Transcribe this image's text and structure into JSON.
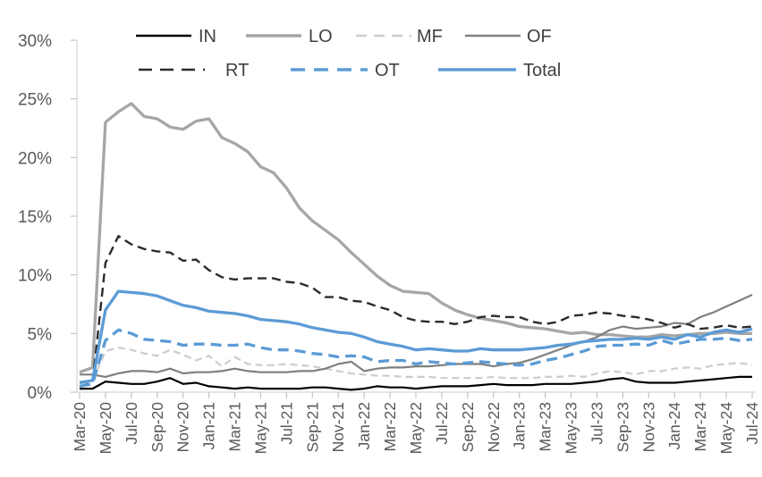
{
  "chart_data": {
    "type": "line",
    "title": "",
    "xlabel": "",
    "ylabel": "",
    "y_unit": "%",
    "ylim": [
      0,
      30
    ],
    "grid": false,
    "legend_position": "top",
    "legend_rows": [
      [
        "IN",
        "LO",
        "MF",
        "OF"
      ],
      [
        "RT",
        "OT",
        "Total"
      ]
    ],
    "y_tick_labels": [
      "0%",
      "5%",
      "10%",
      "15%",
      "20%",
      "25%",
      "30%"
    ],
    "x_tick_labels": [
      "Mar-20",
      "May-20",
      "Jul-20",
      "Sep-20",
      "Nov-20",
      "Jan-21",
      "Mar-21",
      "May-21",
      "Jul-21",
      "Sep-21",
      "Nov-21",
      "Jan-22",
      "Mar-22",
      "May-22",
      "Jul-22",
      "Sep-22",
      "Nov-22",
      "Jan-23",
      "Mar-23",
      "May-23",
      "Jul-23",
      "Sep-23",
      "Nov-23",
      "Jan-24",
      "Mar-24",
      "May-24",
      "Jul-24"
    ],
    "label_every": 2,
    "n_points": 53,
    "x_range_note": "monthly points from Mar-20 to Jul-24",
    "colors": {
      "axis": "#d6d6d6",
      "tick": "#c4c4c4",
      "tick_label": "#595959",
      "legend_text": "#404040",
      "blue": "#5b9bd5"
    },
    "series": [
      {
        "name": "IN",
        "color": "#000000",
        "dash": "solid",
        "values": [
          0.3,
          0.3,
          0.9,
          0.8,
          0.7,
          0.7,
          0.9,
          1.2,
          0.7,
          0.8,
          0.5,
          0.4,
          0.3,
          0.4,
          0.3,
          0.3,
          0.3,
          0.3,
          0.4,
          0.4,
          0.3,
          0.2,
          0.3,
          0.5,
          0.4,
          0.4,
          0.3,
          0.4,
          0.5,
          0.5,
          0.5,
          0.6,
          0.7,
          0.6,
          0.6,
          0.6,
          0.7,
          0.7,
          0.7,
          0.8,
          0.9,
          1.1,
          1.2,
          0.9,
          0.8,
          0.8,
          0.8,
          0.9,
          1.0,
          1.1,
          1.2,
          1.3,
          1.3
        ]
      },
      {
        "name": "LO",
        "color": "#a6a6a6",
        "dash": "solid",
        "values": [
          1.7,
          2.1,
          23.0,
          23.9,
          24.6,
          23.5,
          23.3,
          22.6,
          22.4,
          23.1,
          23.3,
          21.7,
          21.2,
          20.5,
          19.2,
          18.7,
          17.4,
          15.7,
          14.6,
          13.8,
          13.0,
          11.9,
          10.9,
          9.9,
          9.1,
          8.6,
          8.5,
          8.4,
          7.6,
          7.0,
          6.6,
          6.3,
          6.1,
          5.9,
          5.6,
          5.5,
          5.4,
          5.2,
          5.0,
          5.1,
          4.9,
          4.9,
          4.8,
          4.7,
          4.7,
          4.9,
          4.8,
          4.9,
          5.0,
          5.0,
          5.1,
          5.0,
          5.0
        ]
      },
      {
        "name": "MF",
        "color": "#cccccc",
        "dash": "dashed",
        "values": [
          0.9,
          1.0,
          3.5,
          3.8,
          3.6,
          3.3,
          3.1,
          3.6,
          3.2,
          2.7,
          3.1,
          2.2,
          3.0,
          2.4,
          2.3,
          2.3,
          2.4,
          2.3,
          2.2,
          2.0,
          1.8,
          1.6,
          1.5,
          1.4,
          1.4,
          1.3,
          1.3,
          1.3,
          1.2,
          1.2,
          1.2,
          1.2,
          1.3,
          1.2,
          1.2,
          1.2,
          1.3,
          1.3,
          1.4,
          1.3,
          1.6,
          1.8,
          1.7,
          1.5,
          1.8,
          1.8,
          2.0,
          2.1,
          2.0,
          2.3,
          2.4,
          2.5,
          2.3
        ]
      },
      {
        "name": "OF",
        "color": "#7f7f7f",
        "dash": "solid",
        "values": [
          1.5,
          1.5,
          1.3,
          1.6,
          1.8,
          1.8,
          1.7,
          2.0,
          1.6,
          1.7,
          1.7,
          1.8,
          2.0,
          1.8,
          1.7,
          1.7,
          1.7,
          1.8,
          1.8,
          2.0,
          2.4,
          2.6,
          1.8,
          2.0,
          2.1,
          2.1,
          2.2,
          2.2,
          2.3,
          2.4,
          2.4,
          2.4,
          2.2,
          2.4,
          2.5,
          2.8,
          3.2,
          3.6,
          4.0,
          4.3,
          4.7,
          5.3,
          5.6,
          5.4,
          5.5,
          5.6,
          5.9,
          5.8,
          6.4,
          6.8,
          7.3,
          7.8,
          8.3
        ]
      },
      {
        "name": "RT",
        "color": "#2b2b2b",
        "dash": "dashed",
        "values": [
          0.5,
          0.8,
          11.0,
          13.3,
          12.6,
          12.2,
          12.0,
          11.9,
          11.2,
          11.3,
          10.4,
          9.8,
          9.6,
          9.7,
          9.7,
          9.7,
          9.4,
          9.3,
          8.9,
          8.1,
          8.1,
          7.8,
          7.7,
          7.3,
          7.0,
          6.4,
          6.1,
          6.0,
          6.0,
          5.8,
          6.0,
          6.4,
          6.5,
          6.4,
          6.4,
          6.0,
          5.8,
          6.0,
          6.5,
          6.6,
          6.8,
          6.7,
          6.5,
          6.4,
          6.2,
          5.9,
          5.5,
          5.8,
          5.4,
          5.5,
          5.7,
          5.5,
          5.6
        ]
      },
      {
        "name": "OT",
        "color": "#5b9bd5",
        "dash": "dashed",
        "values": [
          0.5,
          0.7,
          4.4,
          5.3,
          5.0,
          4.5,
          4.4,
          4.3,
          4.0,
          4.1,
          4.1,
          4.0,
          4.0,
          4.1,
          3.8,
          3.6,
          3.6,
          3.5,
          3.3,
          3.2,
          3.0,
          3.1,
          3.0,
          2.6,
          2.7,
          2.7,
          2.4,
          2.6,
          2.5,
          2.4,
          2.5,
          2.6,
          2.5,
          2.4,
          2.3,
          2.4,
          2.7,
          2.9,
          3.2,
          3.5,
          3.9,
          4.0,
          4.0,
          4.1,
          4.0,
          4.4,
          4.1,
          4.3,
          4.5,
          4.5,
          4.6,
          4.4,
          4.5
        ]
      },
      {
        "name": "Total",
        "color": "#5b9bd5",
        "dash": "solid",
        "values": [
          0.8,
          1.0,
          7.0,
          8.6,
          8.5,
          8.4,
          8.2,
          7.8,
          7.4,
          7.2,
          6.9,
          6.8,
          6.7,
          6.5,
          6.2,
          6.1,
          6.0,
          5.8,
          5.5,
          5.3,
          5.1,
          5.0,
          4.7,
          4.3,
          4.1,
          3.9,
          3.6,
          3.7,
          3.6,
          3.5,
          3.5,
          3.7,
          3.6,
          3.6,
          3.6,
          3.7,
          3.8,
          4.0,
          4.1,
          4.3,
          4.4,
          4.5,
          4.5,
          4.6,
          4.5,
          4.7,
          4.5,
          4.9,
          4.7,
          5.1,
          5.3,
          5.1,
          5.4
        ]
      }
    ]
  }
}
